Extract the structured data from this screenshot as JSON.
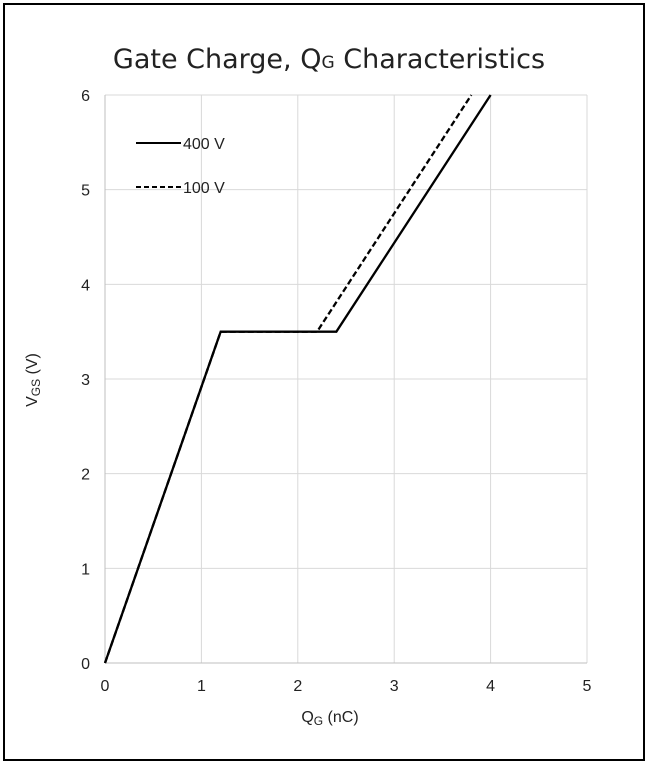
{
  "chart_data": {
    "type": "line",
    "title": {
      "main": "Gate Charge, Q",
      "sub": "G",
      "rest": " Characteristics"
    },
    "xlabel": {
      "main": "Q",
      "sub": "G",
      "rest": " (nC)"
    },
    "ylabel": {
      "main": "V",
      "sub": "GS",
      "rest": " (V)"
    },
    "xlim": [
      0,
      5
    ],
    "ylim": [
      0,
      6
    ],
    "xticks": [
      0,
      1,
      2,
      3,
      4,
      5
    ],
    "yticks": [
      0,
      1,
      2,
      3,
      4,
      5,
      6
    ],
    "grid": true,
    "legend_position": "top-left",
    "series": [
      {
        "name": "400 V",
        "style": "solid",
        "color": "#000000",
        "x": [
          0,
          1.2,
          2.4,
          4.0
        ],
        "y": [
          0,
          3.5,
          3.5,
          6.0
        ]
      },
      {
        "name": "100 V",
        "style": "dashed",
        "color": "#000000",
        "x": [
          0,
          1.2,
          2.2,
          3.8
        ],
        "y": [
          0,
          3.5,
          3.5,
          6.0
        ]
      }
    ]
  }
}
